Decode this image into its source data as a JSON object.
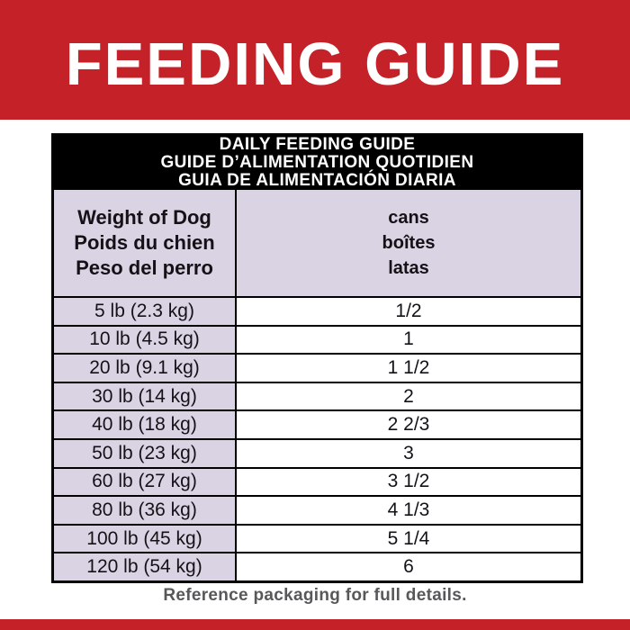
{
  "banner": {
    "title": "FEEDING GUIDE"
  },
  "table": {
    "title_lines": [
      "DAILY FEEDING GUIDE",
      "GUIDE D’ALIMENTATION QUOTIDIEN",
      "GUIA DE ALIMENTACIÓN DIARIA"
    ],
    "header": {
      "weight_lines": [
        "Weight of Dog",
        "Poids du chien",
        "Peso del perro"
      ],
      "cans_lines": [
        "cans",
        "boîtes",
        "latas"
      ]
    },
    "rows": [
      {
        "weight": "5 lb (2.3 kg)",
        "cans": "1/2"
      },
      {
        "weight": "10 lb (4.5 kg)",
        "cans": "1"
      },
      {
        "weight": "20 lb (9.1 kg)",
        "cans": "1 1/2"
      },
      {
        "weight": "30 lb (14 kg)",
        "cans": "2"
      },
      {
        "weight": "40 lb (18 kg)",
        "cans": "2 2/3"
      },
      {
        "weight": "50 lb (23 kg)",
        "cans": "3"
      },
      {
        "weight": "60 lb (27 kg)",
        "cans": "3 1/2"
      },
      {
        "weight": "80 lb (36 kg)",
        "cans": "4 1/3"
      },
      {
        "weight": "100 lb (45 kg)",
        "cans": "5 1/4"
      },
      {
        "weight": "120 lb (54 kg)",
        "cans": "6"
      }
    ]
  },
  "footer": {
    "note": "Reference packaging for full details."
  },
  "colors": {
    "red": "#c42129",
    "lavender": "#dad3e3",
    "band_black": "#000000",
    "text_black": "#141217",
    "footer_gray": "#58585a"
  }
}
